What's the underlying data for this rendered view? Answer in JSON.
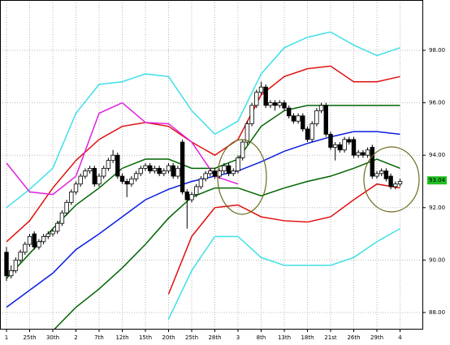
{
  "chart_data": {
    "type": "candlestick",
    "categories": [
      "1",
      "25th",
      "30th",
      "2",
      "7th",
      "12th",
      "15th",
      "20th",
      "25th",
      "28th",
      "3",
      "8th",
      "13th",
      "18th",
      "21st",
      "26th",
      "29th",
      "4"
    ],
    "ohlc": [
      [
        90.3,
        90.5,
        89.2,
        89.4
      ],
      [
        89.4,
        89.8,
        89.3,
        89.6
      ],
      [
        89.6,
        90.1,
        89.5,
        90.0
      ],
      [
        90.0,
        90.4,
        89.9,
        90.3
      ],
      [
        90.3,
        90.7,
        90.2,
        90.6
      ],
      [
        90.6,
        91.0,
        90.5,
        90.9
      ],
      [
        91.0,
        91.1,
        90.4,
        90.5
      ],
      [
        90.5,
        90.8,
        90.4,
        90.7
      ],
      [
        90.7,
        91.0,
        90.6,
        90.9
      ],
      [
        90.9,
        91.1,
        90.8,
        91.0
      ],
      [
        91.0,
        91.2,
        90.9,
        91.1
      ],
      [
        91.1,
        91.5,
        91.0,
        91.4
      ],
      [
        91.4,
        91.9,
        91.3,
        91.8
      ],
      [
        91.8,
        92.3,
        91.7,
        92.2
      ],
      [
        92.2,
        92.7,
        92.1,
        92.6
      ],
      [
        92.6,
        93.0,
        92.5,
        92.9
      ],
      [
        92.9,
        93.3,
        92.8,
        93.2
      ],
      [
        93.2,
        93.5,
        93.1,
        93.4
      ],
      [
        93.4,
        93.6,
        93.3,
        93.5
      ],
      [
        93.5,
        93.6,
        92.8,
        92.9
      ],
      [
        92.9,
        93.3,
        92.8,
        93.2
      ],
      [
        93.2,
        93.6,
        93.1,
        93.5
      ],
      [
        93.5,
        93.9,
        93.4,
        93.8
      ],
      [
        93.8,
        94.2,
        93.7,
        94.0
      ],
      [
        94.0,
        94.1,
        93.1,
        93.2
      ],
      [
        93.2,
        93.3,
        92.9,
        93.0
      ],
      [
        93.0,
        93.1,
        92.4,
        92.9
      ],
      [
        92.9,
        93.2,
        92.8,
        93.1
      ],
      [
        93.1,
        93.4,
        93.0,
        93.3
      ],
      [
        93.3,
        93.6,
        93.2,
        93.5
      ],
      [
        93.5,
        93.7,
        93.4,
        93.6
      ],
      [
        93.6,
        93.7,
        93.3,
        93.4
      ],
      [
        93.4,
        93.6,
        93.3,
        93.5
      ],
      [
        93.5,
        93.6,
        93.2,
        93.3
      ],
      [
        93.3,
        93.5,
        93.2,
        93.4
      ],
      [
        93.4,
        93.7,
        93.3,
        93.6
      ],
      [
        93.6,
        93.7,
        93.1,
        93.2
      ],
      [
        93.2,
        93.6,
        93.1,
        93.5
      ],
      [
        94.5,
        94.6,
        92.5,
        92.6
      ],
      [
        92.6,
        92.7,
        91.2,
        92.3
      ],
      [
        92.3,
        92.6,
        92.2,
        92.5
      ],
      [
        92.5,
        92.9,
        92.4,
        92.8
      ],
      [
        92.8,
        93.2,
        92.7,
        93.1
      ],
      [
        93.1,
        93.4,
        93.0,
        93.3
      ],
      [
        93.3,
        93.5,
        93.2,
        93.4
      ],
      [
        93.4,
        93.5,
        93.1,
        93.2
      ],
      [
        93.2,
        93.5,
        93.1,
        93.4
      ],
      [
        93.4,
        93.7,
        93.3,
        93.6
      ],
      [
        93.6,
        93.7,
        93.2,
        93.3
      ],
      [
        93.3,
        93.5,
        93.2,
        93.4
      ],
      [
        93.4,
        94.0,
        93.3,
        93.9
      ],
      [
        93.9,
        94.6,
        93.8,
        94.5
      ],
      [
        94.5,
        95.3,
        94.4,
        95.2
      ],
      [
        95.2,
        96.0,
        95.1,
        95.9
      ],
      [
        95.9,
        96.5,
        95.8,
        96.4
      ],
      [
        96.4,
        96.8,
        96.3,
        96.6
      ],
      [
        96.6,
        96.7,
        95.8,
        95.9
      ],
      [
        95.9,
        96.1,
        95.8,
        96.0
      ],
      [
        96.0,
        96.1,
        95.7,
        95.9
      ],
      [
        95.9,
        96.1,
        95.8,
        96.0
      ],
      [
        96.0,
        96.1,
        95.7,
        95.8
      ],
      [
        95.8,
        95.9,
        95.4,
        95.5
      ],
      [
        95.5,
        95.6,
        95.2,
        95.3
      ],
      [
        95.3,
        95.6,
        95.2,
        95.5
      ],
      [
        95.5,
        95.6,
        94.9,
        95.0
      ],
      [
        95.0,
        95.1,
        94.5,
        94.6
      ],
      [
        94.6,
        95.3,
        94.5,
        95.2
      ],
      [
        95.2,
        95.8,
        95.1,
        95.7
      ],
      [
        95.7,
        96.0,
        95.6,
        95.9
      ],
      [
        95.9,
        96.0,
        94.7,
        94.8
      ],
      [
        94.8,
        94.9,
        94.2,
        94.3
      ],
      [
        94.3,
        94.5,
        93.8,
        94.4
      ],
      [
        94.4,
        94.5,
        94.1,
        94.2
      ],
      [
        94.2,
        94.7,
        94.1,
        94.6
      ],
      [
        94.6,
        94.7,
        94.4,
        94.5
      ],
      [
        94.6,
        94.7,
        93.9,
        94.0
      ],
      [
        94.0,
        94.2,
        93.9,
        94.1
      ],
      [
        94.1,
        94.2,
        93.9,
        94.0
      ],
      [
        94.0,
        94.3,
        93.9,
        94.2
      ],
      [
        94.3,
        94.4,
        93.1,
        93.2
      ],
      [
        93.2,
        93.4,
        93.1,
        93.3
      ],
      [
        93.3,
        93.5,
        93.2,
        93.4
      ],
      [
        93.4,
        93.5,
        93.0,
        93.1
      ],
      [
        93.2,
        93.3,
        92.7,
        92.8
      ],
      [
        92.8,
        93.0,
        92.7,
        92.9
      ],
      [
        92.9,
        93.1,
        92.8,
        93.0
      ]
    ],
    "x": [
      0,
      5,
      10,
      15,
      20,
      25,
      30,
      35,
      40,
      45,
      50,
      55,
      60,
      65,
      70,
      75,
      80,
      85
    ],
    "series": [
      {
        "color": "#40e0e8",
        "values": [
          92.0,
          92.7,
          93.5,
          95.6,
          96.7,
          96.8,
          97.1,
          97.0,
          95.7,
          94.8,
          95.3,
          97.1,
          98.1,
          98.5,
          98.7,
          98.2,
          97.8,
          98.1
        ]
      },
      {
        "color": "#e01010",
        "values": [
          90.7,
          91.5,
          92.75,
          93.8,
          94.6,
          95.1,
          95.25,
          95.1,
          94.5,
          94.0,
          94.6,
          96.3,
          97.0,
          97.3,
          97.4,
          96.8,
          96.8,
          97.0
        ]
      },
      {
        "color": "#006400",
        "values": [
          89.3,
          90.25,
          91.2,
          92.1,
          92.75,
          93.5,
          93.85,
          93.85,
          93.5,
          93.5,
          93.85,
          95.1,
          95.7,
          95.9,
          95.9,
          95.9,
          95.9,
          95.9
        ]
      },
      {
        "color": "#0a1ee0",
        "values": [
          88.2,
          88.85,
          89.5,
          90.4,
          91.0,
          91.65,
          92.3,
          92.7,
          93.0,
          93.2,
          93.4,
          93.75,
          94.15,
          94.45,
          94.7,
          94.9,
          94.9,
          94.8
        ]
      },
      {
        "color": "#006400",
        "values": [
          null,
          null,
          87.3,
          88.2,
          88.9,
          89.7,
          90.6,
          91.6,
          92.4,
          92.75,
          92.75,
          92.45,
          92.75,
          93.0,
          93.2,
          93.5,
          93.85,
          93.5
        ]
      },
      {
        "color": "#e01010",
        "values": [
          null,
          null,
          null,
          null,
          null,
          null,
          null,
          88.7,
          90.9,
          92.0,
          92.1,
          91.65,
          91.5,
          91.45,
          91.65,
          92.3,
          92.9,
          92.75
        ]
      },
      {
        "color": "#40e0e8",
        "values": [
          null,
          null,
          null,
          null,
          null,
          null,
          null,
          87.75,
          89.6,
          90.9,
          90.9,
          90.1,
          89.8,
          89.8,
          89.8,
          90.1,
          90.7,
          91.2
        ]
      },
      {
        "color": "#e020e0",
        "values": [
          93.7,
          92.6,
          92.5,
          93.2,
          95.6,
          96.0,
          95.25,
          95.2,
          94.5,
          93.2,
          92.9,
          null,
          null,
          null,
          null,
          null,
          null,
          null
        ]
      }
    ],
    "ylim": [
      87.38,
      99.92
    ],
    "yticks": [
      {
        "value": 88,
        "label": "88.00"
      },
      {
        "value": 90,
        "label": "90.00"
      },
      {
        "value": 92,
        "label": "92.00"
      },
      {
        "value": 94,
        "label": "94.00"
      },
      {
        "value": 96,
        "label": "96.00"
      },
      {
        "value": 98,
        "label": "98.00"
      }
    ],
    "last_price": {
      "value": 93.04,
      "label": "93.04"
    },
    "grid": true
  }
}
